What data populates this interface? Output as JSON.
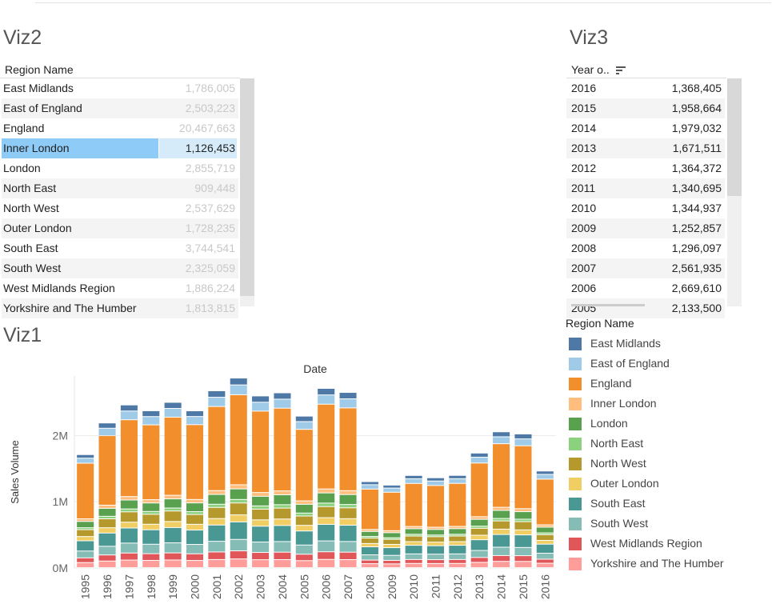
{
  "viz2": {
    "title": "Viz2",
    "header": "Region Name",
    "rows": [
      {
        "name": "East Midlands",
        "value": "1,786,005"
      },
      {
        "name": "East of England",
        "value": "2,503,223"
      },
      {
        "name": "England",
        "value": "20,467,663"
      },
      {
        "name": "Inner London",
        "value": "1,126,453",
        "selected": true
      },
      {
        "name": "London",
        "value": "2,855,719"
      },
      {
        "name": "North East",
        "value": "909,448"
      },
      {
        "name": "North West",
        "value": "2,537,629"
      },
      {
        "name": "Outer London",
        "value": "1,728,235"
      },
      {
        "name": "South East",
        "value": "3,744,541"
      },
      {
        "name": "South West",
        "value": "2,325,059"
      },
      {
        "name": "West Midlands Region",
        "value": "1,886,224"
      },
      {
        "name": "Yorkshire and The Humber",
        "value": "1,813,815"
      }
    ]
  },
  "viz3": {
    "title": "Viz3",
    "header": "Year o..",
    "sort_icon": "sort-descending-icon",
    "rows": [
      {
        "year": "2016",
        "value": "1,368,405"
      },
      {
        "year": "2015",
        "value": "1,958,664"
      },
      {
        "year": "2014",
        "value": "1,979,032"
      },
      {
        "year": "2013",
        "value": "1,671,511"
      },
      {
        "year": "2012",
        "value": "1,364,372"
      },
      {
        "year": "2011",
        "value": "1,340,695"
      },
      {
        "year": "2010",
        "value": "1,344,937"
      },
      {
        "year": "2009",
        "value": "1,252,857"
      },
      {
        "year": "2008",
        "value": "1,296,097"
      },
      {
        "year": "2007",
        "value": "2,561,935"
      },
      {
        "year": "2006",
        "value": "2,669,610"
      },
      {
        "year": "2005",
        "value": "2,133,500"
      }
    ]
  },
  "viz1": {
    "title": "Viz1"
  },
  "legend": {
    "title": "Region Name",
    "items": [
      {
        "label": "East Midlands",
        "color": "#4e79a7"
      },
      {
        "label": "East of England",
        "color": "#a0cbe8"
      },
      {
        "label": "England",
        "color": "#f28e2b"
      },
      {
        "label": "Inner London",
        "color": "#ffbe7d"
      },
      {
        "label": "London",
        "color": "#59a14f"
      },
      {
        "label": "North East",
        "color": "#8cd17d"
      },
      {
        "label": "North West",
        "color": "#b6992d"
      },
      {
        "label": "Outer London",
        "color": "#f1ce63"
      },
      {
        "label": "South East",
        "color": "#499894"
      },
      {
        "label": "South West",
        "color": "#86bcb6"
      },
      {
        "label": "West Midlands Region",
        "color": "#e15759"
      },
      {
        "label": "Yorkshire and The Humber",
        "color": "#ff9d9a"
      }
    ]
  },
  "chart_data": {
    "type": "bar",
    "stacked": true,
    "title": "Date",
    "xlabel": "",
    "ylabel": "Sales Volume",
    "ylim": [
      0,
      2900000
    ],
    "yticks": [
      {
        "value": 0,
        "label": "0M"
      },
      {
        "value": 1000000,
        "label": "1M"
      },
      {
        "value": 2000000,
        "label": "2M"
      }
    ],
    "grid": true,
    "categories": [
      "1995",
      "1996",
      "1997",
      "1998",
      "1999",
      "2000",
      "2001",
      "2002",
      "2003",
      "2004",
      "2005",
      "2006",
      "2007",
      "2008",
      "2009",
      "2010",
      "2011",
      "2012",
      "2013",
      "2014",
      "2015",
      "2016"
    ],
    "series": [
      {
        "name": "East Midlands",
        "values": [
          54000,
          80000,
          92000,
          88000,
          92000,
          86000,
          98000,
          104000,
          95000,
          96000,
          83000,
          99000,
          97000,
          47000,
          45000,
          50000,
          49000,
          50000,
          63000,
          75000,
          75000,
          51000
        ]
      },
      {
        "name": "East of England",
        "values": [
          76000,
          112000,
          132000,
          125000,
          132000,
          123000,
          140000,
          148000,
          134000,
          136000,
          117000,
          140000,
          137000,
          66000,
          63000,
          71000,
          68000,
          71000,
          88000,
          105000,
          104000,
          72000
        ]
      },
      {
        "name": "England",
        "values": [
          840000,
          1050000,
          1160000,
          1130000,
          1180000,
          1130000,
          1270000,
          1360000,
          1230000,
          1250000,
          1080000,
          1280000,
          1250000,
          610000,
          580000,
          650000,
          630000,
          650000,
          810000,
          960000,
          950000,
          690000
        ]
      },
      {
        "name": "Inner London",
        "values": [
          40000,
          48000,
          52000,
          50000,
          54000,
          52000,
          58000,
          62000,
          57000,
          58000,
          52000,
          60000,
          59000,
          30000,
          31000,
          34000,
          34000,
          34000,
          40000,
          47000,
          45000,
          35000
        ]
      },
      {
        "name": "London",
        "values": [
          95000,
          120000,
          135000,
          128000,
          138000,
          132000,
          148000,
          160000,
          145000,
          150000,
          132000,
          154000,
          150000,
          75000,
          76000,
          84000,
          84000,
          85000,
          103000,
          122000,
          114000,
          87000
        ]
      },
      {
        "name": "North East",
        "values": [
          29000,
          38000,
          44000,
          43000,
          45000,
          43000,
          48000,
          53000,
          49000,
          51000,
          45000,
          52000,
          50000,
          25000,
          24000,
          26000,
          25000,
          26000,
          32000,
          37000,
          37000,
          27000
        ]
      },
      {
        "name": "North West",
        "values": [
          104000,
          135000,
          156000,
          150000,
          159000,
          148000,
          168000,
          180000,
          162000,
          165000,
          141000,
          168000,
          164000,
          82000,
          76000,
          85000,
          82000,
          85000,
          105000,
          124000,
          124000,
          86000
        ]
      },
      {
        "name": "Outer London",
        "values": [
          64000,
          80000,
          88000,
          84000,
          91000,
          87000,
          98000,
          106000,
          96000,
          98000,
          85000,
          101000,
          99000,
          50000,
          50000,
          55000,
          55000,
          55000,
          68000,
          81000,
          76000,
          57000
        ]
      },
      {
        "name": "South East",
        "values": [
          155000,
          200000,
          228000,
          218000,
          231000,
          217000,
          246000,
          264000,
          239000,
          243000,
          212000,
          250000,
          246000,
          121000,
          116000,
          130000,
          127000,
          130000,
          162000,
          192000,
          190000,
          137000
        ]
      },
      {
        "name": "South West",
        "values": [
          103000,
          131000,
          150000,
          143000,
          152000,
          142000,
          161000,
          173000,
          157000,
          160000,
          139000,
          164000,
          161000,
          79000,
          76000,
          85000,
          83000,
          85000,
          106000,
          126000,
          124000,
          90000
        ]
      },
      {
        "name": "West Midlands Region",
        "values": [
          71000,
          92000,
          106000,
          101000,
          107000,
          100000,
          114000,
          122000,
          110000,
          112000,
          97000,
          115000,
          112000,
          55000,
          53000,
          59000,
          58000,
          59000,
          74000,
          88000,
          87000,
          61000
        ]
      },
      {
        "name": "Yorkshire and The Humber",
        "values": [
          76000,
          99000,
          114000,
          109000,
          115000,
          108000,
          122000,
          131000,
          119000,
          121000,
          105000,
          124000,
          121000,
          59000,
          56000,
          63000,
          62000,
          63000,
          79000,
          94000,
          93000,
          66000
        ]
      }
    ]
  }
}
